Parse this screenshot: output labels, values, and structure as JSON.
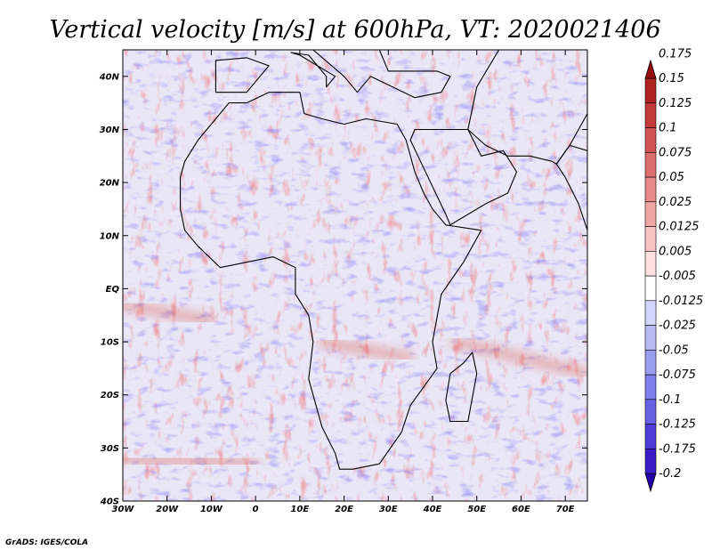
{
  "chart_data": {
    "type": "heatmap",
    "title": "Vertical velocity [m/s] at 600hPa, VT: 2020021406",
    "variable": "Vertical velocity",
    "units": "m/s",
    "level": "600hPa",
    "valid_time": "2020021406",
    "x_ticks": [
      {
        "value": -30,
        "label": "30W"
      },
      {
        "value": -20,
        "label": "20W"
      },
      {
        "value": -10,
        "label": "10W"
      },
      {
        "value": 0,
        "label": "0"
      },
      {
        "value": 10,
        "label": "10E"
      },
      {
        "value": 20,
        "label": "20E"
      },
      {
        "value": 30,
        "label": "30E"
      },
      {
        "value": 40,
        "label": "40E"
      },
      {
        "value": 50,
        "label": "50E"
      },
      {
        "value": 60,
        "label": "60E"
      },
      {
        "value": 70,
        "label": "70E"
      }
    ],
    "y_ticks": [
      {
        "value": 40,
        "label": "40N"
      },
      {
        "value": 30,
        "label": "30N"
      },
      {
        "value": 20,
        "label": "20N"
      },
      {
        "value": 10,
        "label": "10N"
      },
      {
        "value": 0,
        "label": "EQ"
      },
      {
        "value": -10,
        "label": "10S"
      },
      {
        "value": -20,
        "label": "20S"
      },
      {
        "value": -30,
        "label": "30S"
      },
      {
        "value": -40,
        "label": "40S"
      }
    ],
    "xlim": [
      -30,
      75
    ],
    "ylim": [
      -40,
      45
    ],
    "colorbar": {
      "colors": [
        "#2400a8",
        "#3a1cc4",
        "#4f3dd6",
        "#6660e2",
        "#7f80ea",
        "#9a9ef0",
        "#b6bbf5",
        "#d2d5fa",
        "#ffffff",
        "#fde0e0",
        "#f8c4c4",
        "#f1a6a6",
        "#e98a8a",
        "#de6e6e",
        "#d25454",
        "#c33a3a",
        "#b02222",
        "#960c0c"
      ],
      "labels": [
        "-0.2",
        "-0.175",
        "-0.125",
        "-0.1",
        "-0.075",
        "-0.05",
        "-0.025",
        "-0.0125",
        "-0.005",
        "0.005",
        "0.0125",
        "0.025",
        "0.05",
        "0.075",
        "0.1",
        "0.125",
        "0.15",
        "0.175"
      ],
      "values": [
        -0.2,
        -0.175,
        -0.125,
        -0.1,
        -0.075,
        -0.05,
        -0.025,
        -0.0125,
        -0.005,
        0.005,
        0.0125,
        0.025,
        0.05,
        0.075,
        0.1,
        0.125,
        0.15,
        0.175
      ]
    },
    "features": [
      {
        "name": "Africa",
        "coords": [
          [
            -17,
            21
          ],
          [
            -16,
            24
          ],
          [
            -13,
            28
          ],
          [
            -9,
            32
          ],
          [
            -6,
            35
          ],
          [
            -2,
            35
          ],
          [
            3,
            37
          ],
          [
            10,
            37
          ],
          [
            11,
            33
          ],
          [
            15,
            32
          ],
          [
            20,
            31
          ],
          [
            25,
            32
          ],
          [
            32,
            31
          ],
          [
            34,
            28
          ],
          [
            36,
            22
          ],
          [
            38,
            18
          ],
          [
            40,
            15
          ],
          [
            43,
            12
          ],
          [
            51,
            11
          ],
          [
            47,
            5
          ],
          [
            42,
            -1
          ],
          [
            40,
            -10
          ],
          [
            41,
            -15
          ],
          [
            35,
            -22
          ],
          [
            33,
            -27
          ],
          [
            28,
            -33
          ],
          [
            22,
            -34
          ],
          [
            19,
            -34
          ],
          [
            18,
            -31
          ],
          [
            15,
            -26
          ],
          [
            12,
            -17
          ],
          [
            13,
            -10
          ],
          [
            12,
            -5
          ],
          [
            9,
            -1
          ],
          [
            9,
            4
          ],
          [
            4,
            6
          ],
          [
            -2,
            5
          ],
          [
            -8,
            4
          ],
          [
            -13,
            8
          ],
          [
            -16,
            11
          ],
          [
            -17,
            15
          ],
          [
            -17,
            21
          ]
        ]
      },
      {
        "name": "Madagascar",
        "coords": [
          [
            49,
            -12
          ],
          [
            50,
            -16
          ],
          [
            48,
            -25
          ],
          [
            44,
            -25
          ],
          [
            43,
            -21
          ],
          [
            44,
            -16
          ],
          [
            47,
            -14
          ],
          [
            49,
            -12
          ]
        ]
      },
      {
        "name": "Arabia",
        "coords": [
          [
            35,
            28
          ],
          [
            36,
            30
          ],
          [
            48,
            30
          ],
          [
            51,
            25
          ],
          [
            56,
            26
          ],
          [
            59,
            22
          ],
          [
            57,
            18
          ],
          [
            52,
            16
          ],
          [
            44,
            12
          ],
          [
            43,
            14
          ],
          [
            39,
            21
          ],
          [
            35,
            28
          ]
        ]
      },
      {
        "name": "Iberia",
        "coords": [
          [
            -9,
            37
          ],
          [
            -9,
            43
          ],
          [
            -2,
            43.5
          ],
          [
            3,
            42
          ],
          [
            0,
            39
          ],
          [
            -2,
            37
          ],
          [
            -9,
            37
          ]
        ]
      },
      {
        "name": "Italy",
        "coords": [
          [
            8,
            44.5
          ],
          [
            12,
            44
          ],
          [
            16,
            40
          ],
          [
            16,
            38
          ],
          [
            18,
            40
          ],
          [
            14,
            42
          ],
          [
            10,
            44
          ],
          [
            8,
            44.5
          ]
        ]
      },
      {
        "name": "Balkans-Turkey",
        "coords": [
          [
            13,
            45
          ],
          [
            20,
            40
          ],
          [
            23,
            37
          ],
          [
            26,
            40
          ],
          [
            36,
            36
          ],
          [
            42,
            37
          ],
          [
            44,
            40
          ],
          [
            41,
            41
          ],
          [
            30,
            41
          ],
          [
            28,
            45
          ],
          [
            13,
            45
          ]
        ]
      },
      {
        "name": "Iran-Pakistan",
        "coords": [
          [
            48,
            30
          ],
          [
            52,
            27
          ],
          [
            57,
            25
          ],
          [
            62,
            25
          ],
          [
            67,
            24
          ],
          [
            68,
            23.5
          ],
          [
            71,
            27
          ],
          [
            75,
            33
          ],
          [
            75,
            45
          ],
          [
            55,
            45
          ],
          [
            50,
            38
          ],
          [
            48,
            30
          ]
        ]
      },
      {
        "name": "India",
        "coords": [
          [
            68,
            23.5
          ],
          [
            70,
            21
          ],
          [
            73,
            16
          ],
          [
            75,
            11
          ],
          [
            75,
            26
          ],
          [
            71,
            27
          ],
          [
            68,
            23.5
          ]
        ]
      }
    ],
    "bands": [
      {
        "name": "South Atlantic storm track",
        "coords": [
          [
            -30,
            -32
          ],
          [
            0,
            -33
          ]
        ],
        "sign": "positive"
      },
      {
        "name": "ITCZ east Atlantic",
        "coords": [
          [
            -30,
            -3
          ],
          [
            -10,
            -6
          ]
        ],
        "sign": "positive"
      },
      {
        "name": "Southern Africa convergence",
        "coords": [
          [
            15,
            -10
          ],
          [
            35,
            -13
          ]
        ],
        "sign": "positive"
      },
      {
        "name": "Indian Ocean band",
        "coords": [
          [
            45,
            -10
          ],
          [
            75,
            -16
          ]
        ],
        "sign": "positive"
      }
    ],
    "credit": "GrADS: IGES/COLA"
  }
}
